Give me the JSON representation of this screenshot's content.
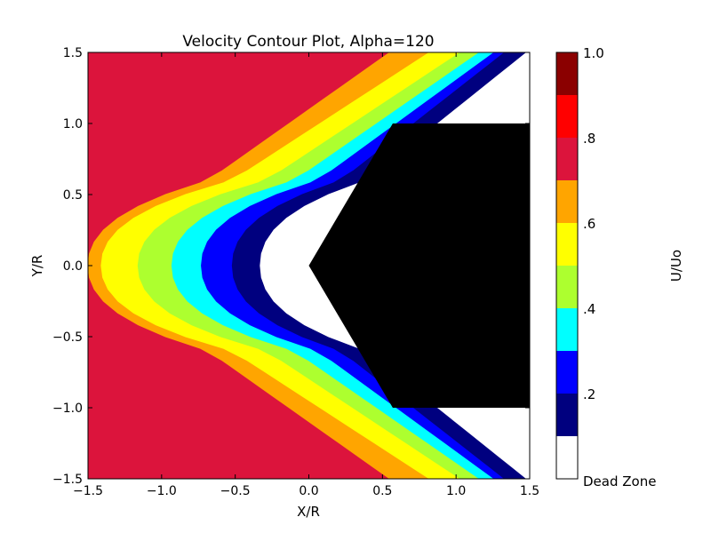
{
  "chart_data": {
    "type": "contour",
    "title": "Velocity Contour Plot, Alpha=120",
    "xlabel": "X/R",
    "ylabel": "Y/R",
    "xlim": [
      -1.5,
      1.5
    ],
    "ylim": [
      -1.5,
      1.5
    ],
    "xticks": [
      {
        "value": -1.5,
        "label": "−1.5"
      },
      {
        "value": -1.0,
        "label": "−1.0"
      },
      {
        "value": -0.5,
        "label": "−0.5"
      },
      {
        "value": 0.0,
        "label": "0.0"
      },
      {
        "value": 0.5,
        "label": "0.5"
      },
      {
        "value": 1.0,
        "label": "1.0"
      },
      {
        "value": 1.5,
        "label": "1.5"
      }
    ],
    "yticks": [
      {
        "value": -1.5,
        "label": "−1.5"
      },
      {
        "value": -1.0,
        "label": "−1.0"
      },
      {
        "value": -0.5,
        "label": "−0.5"
      },
      {
        "value": 0.0,
        "label": "0.0"
      },
      {
        "value": 0.5,
        "label": "0.5"
      },
      {
        "value": 1.0,
        "label": "1.0"
      },
      {
        "value": 1.5,
        "label": "1.5"
      }
    ],
    "levels": [
      {
        "min": 0.0,
        "max": 0.1,
        "color": "#ffffff"
      },
      {
        "min": 0.1,
        "max": 0.2,
        "color": "#00007f"
      },
      {
        "min": 0.2,
        "max": 0.3,
        "color": "#0000ff"
      },
      {
        "min": 0.3,
        "max": 0.4,
        "color": "#00ffff"
      },
      {
        "min": 0.4,
        "max": 0.5,
        "color": "#adff2f"
      },
      {
        "min": 0.5,
        "max": 0.6,
        "color": "#ffff00"
      },
      {
        "min": 0.6,
        "max": 0.7,
        "color": "#ffa500"
      },
      {
        "min": 0.7,
        "max": 0.8,
        "color": "#dc143c"
      },
      {
        "min": 0.8,
        "max": 0.9,
        "color": "#ff0000"
      },
      {
        "min": 0.9,
        "max": 1.0,
        "color": "#8b0000"
      }
    ],
    "contour_bands": [
      {
        "level": 0.7,
        "color": "#ffa500",
        "apex_x": -1.5,
        "top_x": 0.55,
        "y_break": 0.6
      },
      {
        "level": 0.6,
        "color": "#ffff00",
        "apex_x": -1.41,
        "top_x": 0.82,
        "y_break": 0.6
      },
      {
        "level": 0.5,
        "color": "#adff2f",
        "apex_x": -1.16,
        "top_x": 1.03,
        "y_break": 0.6
      },
      {
        "level": 0.4,
        "color": "#00ffff",
        "apex_x": -0.93,
        "top_x": 1.16,
        "y_break": 0.6
      },
      {
        "level": 0.3,
        "color": "#0000ff",
        "apex_x": -0.73,
        "top_x": 1.26,
        "y_break": 0.6
      },
      {
        "level": 0.2,
        "color": "#00007f",
        "apex_x": -0.52,
        "top_x": 1.33,
        "y_break": 0.6
      },
      {
        "level": 0.1,
        "color": "#ffffff",
        "apex_x": -0.33,
        "top_x": 1.48,
        "y_break": 0.6
      }
    ],
    "body": {
      "color": "#000000",
      "vertices": [
        [
          0.0,
          0.0
        ],
        [
          0.57,
          1.0
        ],
        [
          1.5,
          1.0
        ],
        [
          1.5,
          -1.0
        ],
        [
          0.57,
          -1.0
        ]
      ]
    },
    "colorbar": {
      "label": "U/Uo",
      "min": 0.0,
      "max": 1.0,
      "ticks": [
        {
          "value": 1.0,
          "label": "1.0"
        },
        {
          "value": 0.8,
          "label": ".8"
        },
        {
          "value": 0.6,
          "label": ".6"
        },
        {
          "value": 0.4,
          "label": ".4"
        },
        {
          "value": 0.2,
          "label": ".2"
        },
        {
          "value": 0.0,
          "label": "Dead Zone"
        }
      ]
    },
    "grid": false,
    "legend": "colorbar-right"
  }
}
